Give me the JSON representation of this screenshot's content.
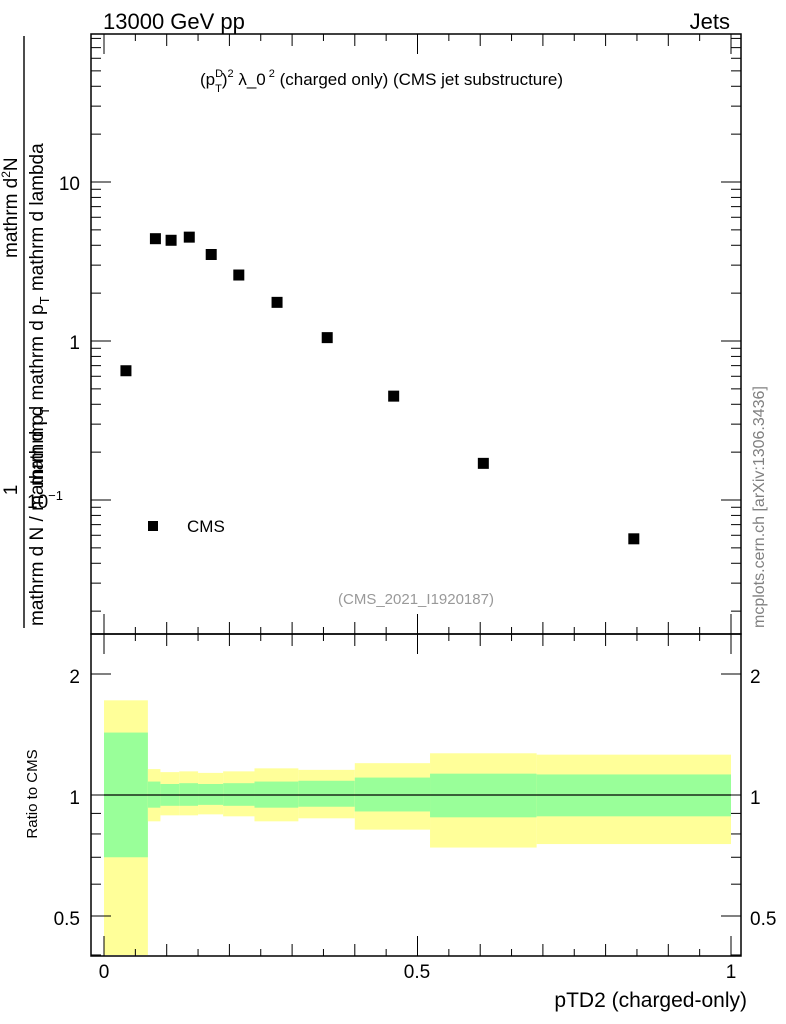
{
  "header": {
    "left_label": "13000 GeV pp",
    "right_label": "Jets"
  },
  "watermark": "mcplots.cern.ch [arXiv:1306.3436]",
  "analysis_id": "(CMS_2021_I1920187)",
  "colors": {
    "data_marker": "#000000",
    "band_inner": "#99ff99",
    "band_outer": "#ffff99",
    "reference_line": "#000000"
  },
  "chart_data": [
    {
      "type": "scatter",
      "panel": "main",
      "title_parts": {
        "pre": "(p",
        "sup1": "D",
        "sub1": "T",
        "post1": ")",
        "sup2": "2",
        "post2": " λ_0",
        "sup3": "2",
        "post3": " (charged only) (CMS jet substructure)"
      },
      "ylabel_parts": {
        "numerator": "1",
        "denominator": "mathrm d N / mathrm d p",
        "denominator_sub": "T",
        "numerator2": "mathrm d",
        "numerator2_sup": "2",
        "numerator2_rest": "N",
        "denominator2": "mathrm d p",
        "denominator2_sub": "T",
        "denominator2_rest": " mathrm d lambda"
      },
      "yscale": "log",
      "ylim": [
        0.02,
        50
      ],
      "xlim": [
        -0.02,
        1.02
      ],
      "ytick_labels": [
        "10",
        "1",
        "10"
      ],
      "ytick_exponent": "−1",
      "legend": {
        "placement": "bottom-left",
        "entries": [
          "CMS"
        ]
      },
      "series": [
        {
          "name": "CMS",
          "marker": "square",
          "x": [
            0.035,
            0.082,
            0.107,
            0.136,
            0.171,
            0.215,
            0.276,
            0.356,
            0.462,
            0.605,
            0.845
          ],
          "y": [
            0.65,
            4.4,
            4.3,
            4.5,
            3.5,
            2.6,
            1.75,
            1.05,
            0.45,
            0.17,
            0.057
          ]
        }
      ]
    },
    {
      "type": "area",
      "panel": "ratio",
      "ylabel": "Ratio to CMS",
      "xlabel": "pTD2 (charged-only)",
      "xlim": [
        -0.02,
        1.02
      ],
      "ylim": [
        0.35,
        2.35
      ],
      "yscale": "log",
      "ytick_labels": [
        "0.5",
        "1",
        "2"
      ],
      "xtick_labels": [
        "0",
        "0.5",
        "1"
      ],
      "reference_value": 1,
      "bands": {
        "edges": [
          0.0,
          0.07,
          0.09,
          0.12,
          0.15,
          0.19,
          0.24,
          0.31,
          0.4,
          0.52,
          0.69,
          1.0
        ],
        "inner_lo": [
          0.7,
          0.93,
          0.94,
          0.94,
          0.945,
          0.94,
          0.93,
          0.935,
          0.91,
          0.88,
          0.885
        ],
        "inner_hi": [
          1.43,
          1.08,
          1.065,
          1.07,
          1.065,
          1.07,
          1.08,
          1.085,
          1.105,
          1.13,
          1.125
        ],
        "outer_lo": [
          0.3,
          0.86,
          0.89,
          0.89,
          0.895,
          0.885,
          0.86,
          0.875,
          0.82,
          0.74,
          0.755
        ],
        "outer_hi": [
          1.72,
          1.16,
          1.14,
          1.145,
          1.135,
          1.145,
          1.165,
          1.155,
          1.2,
          1.27,
          1.26
        ]
      }
    }
  ]
}
